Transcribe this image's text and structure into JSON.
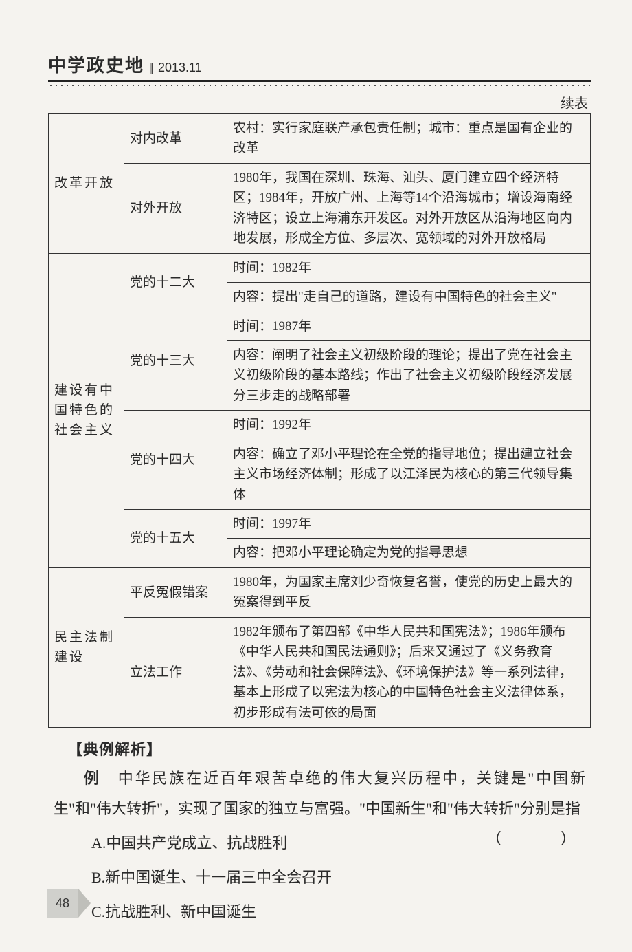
{
  "header": {
    "journal": "中学政史地",
    "separator": "∥",
    "issue": "2013.11"
  },
  "continued_label": "续表",
  "table": {
    "colors": {
      "border": "#333333",
      "text": "#2a2a2a",
      "background": "#f5f3ef"
    },
    "font_size": 19,
    "sections": [
      {
        "c1": "改革开放",
        "rows": [
          {
            "c2": "对内改革",
            "c3": "农村：实行家庭联产承包责任制；城市：重点是国有企业的改革"
          },
          {
            "c2": "对外开放",
            "c3": "1980年，我国在深圳、珠海、汕头、厦门建立四个经济特区；1984年，开放广州、上海等14个沿海城市；增设海南经济特区；设立上海浦东开发区。对外开放区从沿海地区向内地发展，形成全方位、多层次、宽领域的对外开放格局"
          }
        ]
      },
      {
        "c1": "建设有中国特色的社会主义",
        "rows": [
          {
            "c2": "党的十二大",
            "c3a": "时间：1982年",
            "c3b": "内容：提出\"走自己的道路，建设有中国特色的社会主义\""
          },
          {
            "c2": "党的十三大",
            "c3a": "时间：1987年",
            "c3b": "内容：阐明了社会主义初级阶段的理论；提出了党在社会主义初级阶段的基本路线；作出了社会主义初级阶段经济发展分三步走的战略部署"
          },
          {
            "c2": "党的十四大",
            "c3a": "时间：1992年",
            "c3b": "内容：确立了邓小平理论在全党的指导地位；提出建立社会主义市场经济体制；形成了以江泽民为核心的第三代领导集体"
          },
          {
            "c2": "党的十五大",
            "c3a": "时间：1997年",
            "c3b": "内容：把邓小平理论确定为党的指导思想"
          }
        ]
      },
      {
        "c1": "民主法制建设",
        "rows": [
          {
            "c2": "平反冤假错案",
            "c3": "1980年，为国家主席刘少奇恢复名誉，使党的历史上最大的冤案得到平反"
          },
          {
            "c2": "立法工作",
            "c3": "1982年颁布了第四部《中华人民共和国宪法》；1986年颁布《中华人民共和国民法通则》；后来又通过了《义务教育法》、《劳动和社会保障法》、《环境保护法》等一系列法律，基本上形成了以宪法为核心的中国特色社会主义法律体系，初步形成有法可依的局面"
          }
        ]
      }
    ]
  },
  "analysis": {
    "heading": "【典例解析】",
    "stem_lead": "例",
    "stem": "　中华民族在近百年艰苦卓绝的伟大复兴历程中，关键是\"中国新生\"和\"伟大转折\"，实现了国家的独立与富强。\"中国新生\"和\"伟大转折\"分别是指",
    "paren": "（　　）",
    "options": [
      "A.中国共产党成立、抗战胜利",
      "B.新中国诞生、十一届三中全会召开",
      "C.抗战胜利、新中国诞生"
    ]
  },
  "page_number": "48"
}
